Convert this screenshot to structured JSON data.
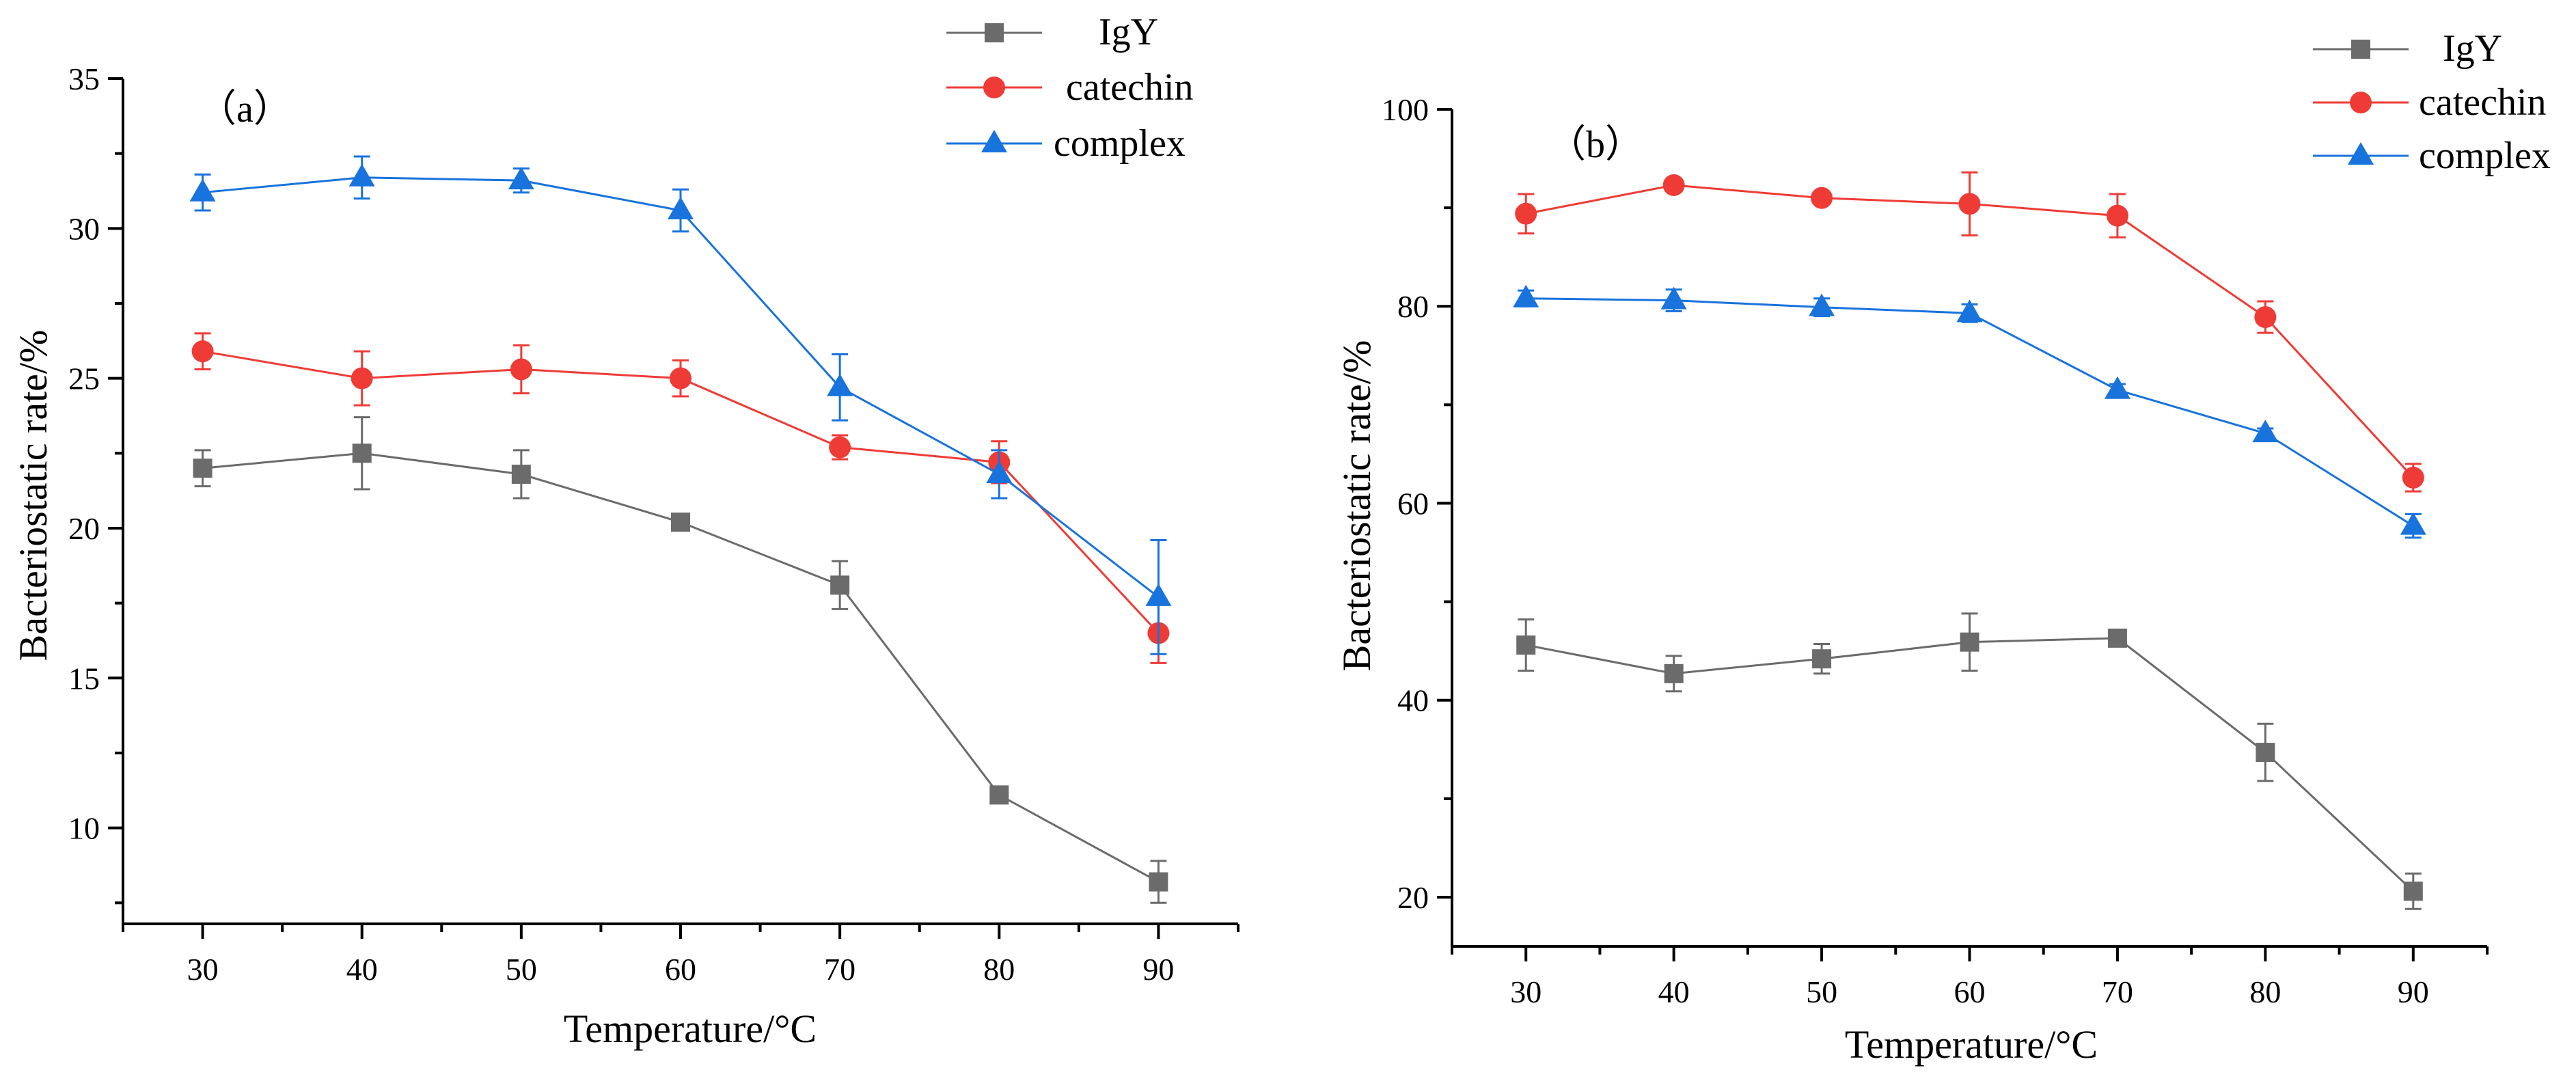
{
  "chart_data": [
    {
      "type": "line",
      "panel_label": "（a）",
      "xlabel": "Temperature/°C",
      "ylabel": "Bacteriostatic rate/%",
      "x": [
        30,
        40,
        50,
        60,
        70,
        80,
        90
      ],
      "xlim": [
        25,
        95
      ],
      "ylim": [
        6.8,
        35
      ],
      "xticks": [
        "30",
        "40",
        "50",
        "60",
        "70",
        "80",
        "90"
      ],
      "yticks": [
        "10",
        "15",
        "20",
        "25",
        "30",
        "35"
      ],
      "legend_position": "top-right",
      "series": [
        {
          "name": "IgY",
          "color": "#6b6b6b",
          "marker": "square",
          "values": [
            22.0,
            22.5,
            21.8,
            20.2,
            18.1,
            11.1,
            8.2
          ],
          "errors": [
            0.6,
            1.2,
            0.8,
            0.15,
            0.8,
            0.2,
            0.7
          ]
        },
        {
          "name": "catechin",
          "color": "#ef3b36",
          "marker": "circle",
          "values": [
            25.9,
            25.0,
            25.3,
            25.0,
            22.7,
            22.2,
            16.5
          ],
          "errors": [
            0.6,
            0.9,
            0.8,
            0.6,
            0.4,
            0.7,
            1.0
          ]
        },
        {
          "name": "complex",
          "color": "#1873dd",
          "marker": "triangle",
          "values": [
            31.2,
            31.7,
            31.6,
            30.6,
            24.7,
            21.8,
            17.7
          ],
          "errors": [
            0.6,
            0.7,
            0.4,
            0.7,
            1.1,
            0.8,
            1.9
          ]
        }
      ]
    },
    {
      "type": "line",
      "panel_label": "（b）",
      "xlabel": "Temperature/°C",
      "ylabel": "Bacteriostatic rate/%",
      "x": [
        30,
        40,
        50,
        60,
        70,
        80,
        90
      ],
      "xlim": [
        25,
        95
      ],
      "ylim": [
        15,
        100
      ],
      "xticks": [
        "30",
        "40",
        "50",
        "60",
        "70",
        "80",
        "90"
      ],
      "yticks": [
        "20",
        "40",
        "60",
        "80",
        "100"
      ],
      "legend_position": "top-right",
      "series": [
        {
          "name": "IgY",
          "color": "#6b6b6b",
          "marker": "square",
          "values": [
            45.6,
            42.7,
            44.2,
            45.9,
            46.3,
            34.7,
            20.6
          ],
          "errors": [
            2.6,
            1.8,
            1.5,
            2.9,
            0.4,
            2.9,
            1.8
          ]
        },
        {
          "name": "catechin",
          "color": "#ef3b36",
          "marker": "circle",
          "values": [
            89.4,
            92.3,
            91.0,
            90.4,
            89.2,
            78.9,
            62.6
          ],
          "errors": [
            2.0,
            0.5,
            0.6,
            3.2,
            2.2,
            1.6,
            1.4
          ]
        },
        {
          "name": "complex",
          "color": "#1873dd",
          "marker": "triangle",
          "values": [
            80.8,
            80.6,
            79.9,
            79.3,
            71.5,
            67.1,
            57.7
          ],
          "errors": [
            0.8,
            1.1,
            0.9,
            0.9,
            0.6,
            0.5,
            1.2
          ]
        }
      ]
    }
  ]
}
